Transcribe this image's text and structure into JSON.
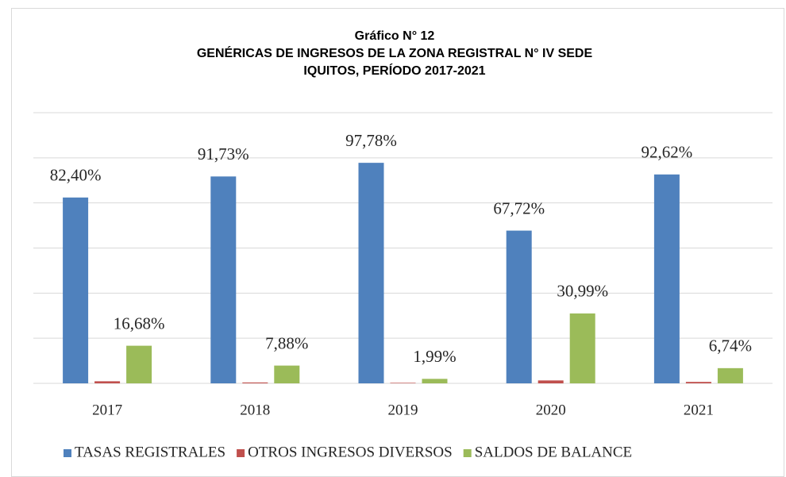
{
  "chart_data": {
    "type": "bar",
    "title": [
      "Gráfico N° 12",
      "GENÉRICAS DE INGRESOS DE LA ZONA REGISTRAL N° IV SEDE",
      "IQUITOS, PERÍODO 2017-2021"
    ],
    "categories": [
      "2017",
      "2018",
      "2019",
      "2020",
      "2021"
    ],
    "series": [
      {
        "name": "TASAS REGISTRALES",
        "color": "#4f81bd",
        "values": [
          82.4,
          91.73,
          97.78,
          67.72,
          92.62
        ],
        "value_labels": [
          "82,40%",
          "91,73%",
          "97,78%",
          "67,72%",
          "92,62%"
        ]
      },
      {
        "name": "OTROS INGRESOS DIVERSOS",
        "color": "#c0504d",
        "values": [
          0.92,
          0.39,
          0.23,
          1.29,
          0.64
        ]
      },
      {
        "name": "SALDOS DE BALANCE",
        "color": "#9bbb59",
        "values": [
          16.68,
          7.88,
          1.99,
          30.99,
          6.74
        ],
        "value_labels": [
          "16,68%",
          "7,88%",
          "1,99%",
          "30,99%",
          "6,74%"
        ]
      }
    ],
    "ylim": [
      0,
      120
    ],
    "yticks": [
      0,
      20,
      40,
      60,
      80,
      100,
      120
    ],
    "grid": true,
    "legend": "bottom"
  }
}
